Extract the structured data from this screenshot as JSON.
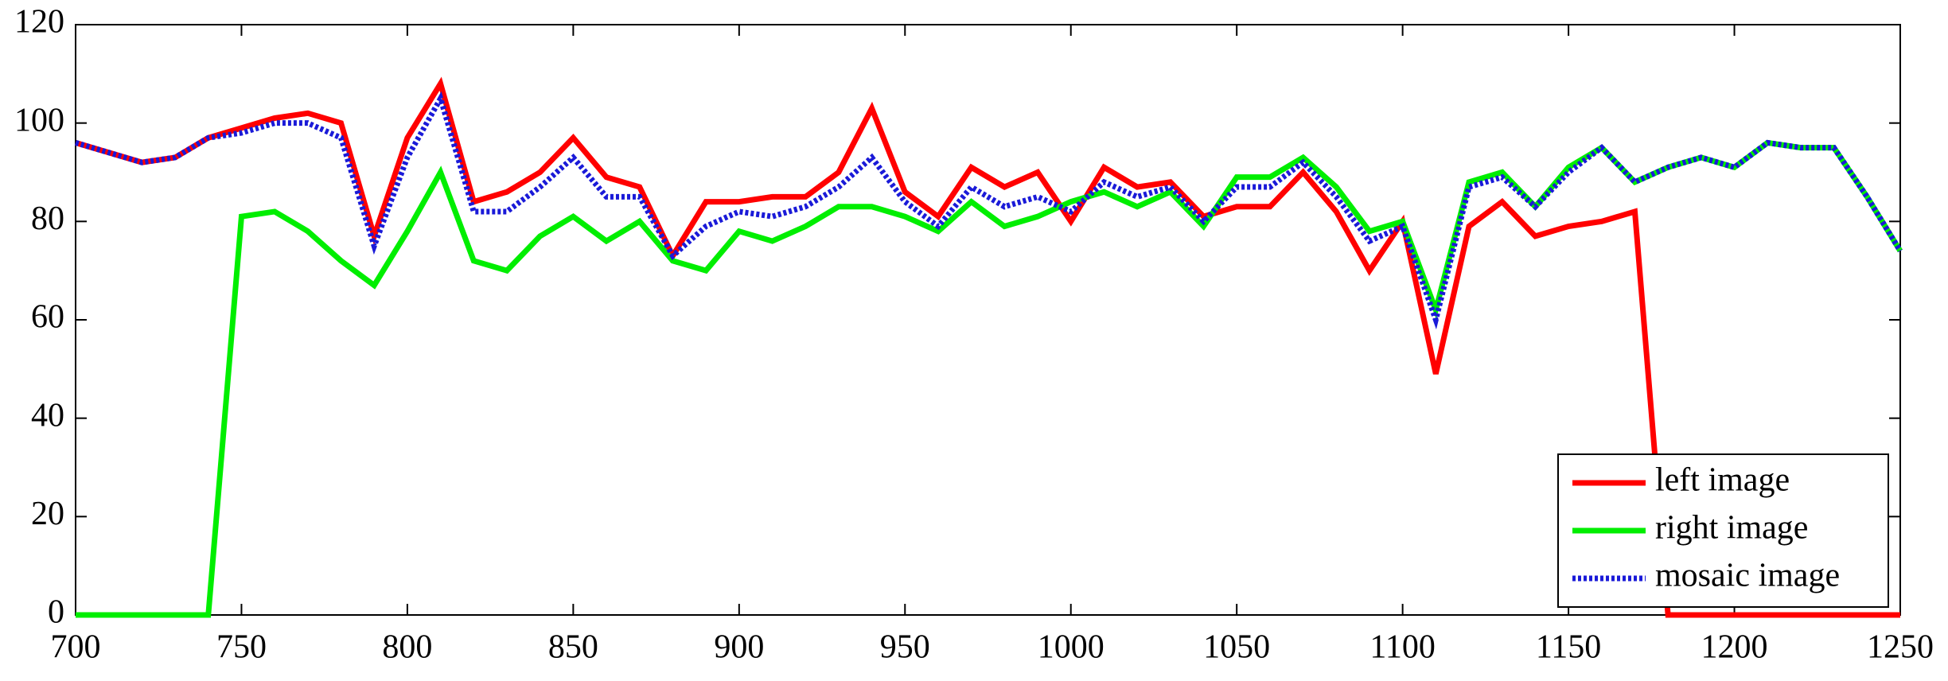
{
  "chart_data": {
    "type": "line",
    "x": [
      700,
      710,
      720,
      730,
      740,
      750,
      760,
      770,
      780,
      790,
      800,
      810,
      820,
      830,
      840,
      850,
      860,
      870,
      880,
      890,
      900,
      910,
      920,
      930,
      940,
      950,
      960,
      970,
      980,
      990,
      1000,
      1010,
      1020,
      1030,
      1040,
      1050,
      1060,
      1070,
      1080,
      1090,
      1100,
      1110,
      1120,
      1130,
      1140,
      1150,
      1160,
      1170,
      1180,
      1190,
      1200,
      1210,
      1220,
      1230,
      1240,
      1250
    ],
    "series": [
      {
        "name": "left image",
        "color": "#ff0000",
        "dash": false,
        "values": [
          96,
          94,
          92,
          93,
          97,
          99,
          101,
          102,
          100,
          77,
          97,
          108,
          84,
          86,
          90,
          97,
          89,
          87,
          73,
          84,
          84,
          85,
          85,
          90,
          103,
          86,
          81,
          91,
          87,
          90,
          80,
          91,
          87,
          88,
          81,
          83,
          83,
          90,
          82,
          70,
          80,
          49,
          79,
          84,
          77,
          79,
          80,
          82,
          0,
          0,
          0,
          0,
          0,
          0,
          0,
          0
        ]
      },
      {
        "name": "right image",
        "color": "#00ee00",
        "dash": false,
        "values": [
          0,
          0,
          0,
          0,
          0,
          81,
          82,
          78,
          72,
          67,
          78,
          90,
          72,
          70,
          77,
          81,
          76,
          80,
          72,
          70,
          78,
          76,
          79,
          83,
          83,
          81,
          78,
          84,
          79,
          81,
          84,
          86,
          83,
          86,
          79,
          89,
          89,
          93,
          87,
          78,
          80,
          62,
          88,
          90,
          83,
          91,
          95,
          88,
          91,
          93,
          91,
          96,
          95,
          95,
          85,
          74
        ]
      },
      {
        "name": "mosaic image",
        "color": "#1a1ad8",
        "dash": true,
        "values": [
          96,
          94,
          92,
          93,
          97,
          98,
          100,
          100,
          97,
          75,
          93,
          105,
          82,
          82,
          87,
          93,
          85,
          85,
          73,
          79,
          82,
          81,
          83,
          87,
          93,
          84,
          79,
          87,
          83,
          85,
          82,
          88,
          85,
          87,
          80,
          87,
          87,
          92,
          85,
          76,
          79,
          60,
          87,
          89,
          83,
          90,
          95,
          88,
          91,
          93,
          91,
          96,
          95,
          95,
          85,
          74
        ]
      }
    ],
    "xlim": [
      700,
      1250
    ],
    "xticks": [
      700,
      750,
      800,
      850,
      900,
      950,
      1000,
      1050,
      1100,
      1150,
      1200,
      1250
    ],
    "ylim": [
      0,
      120
    ],
    "yticks": [
      0,
      20,
      40,
      60,
      80,
      100,
      120
    ],
    "legend": "lower-right",
    "grid": false
  }
}
